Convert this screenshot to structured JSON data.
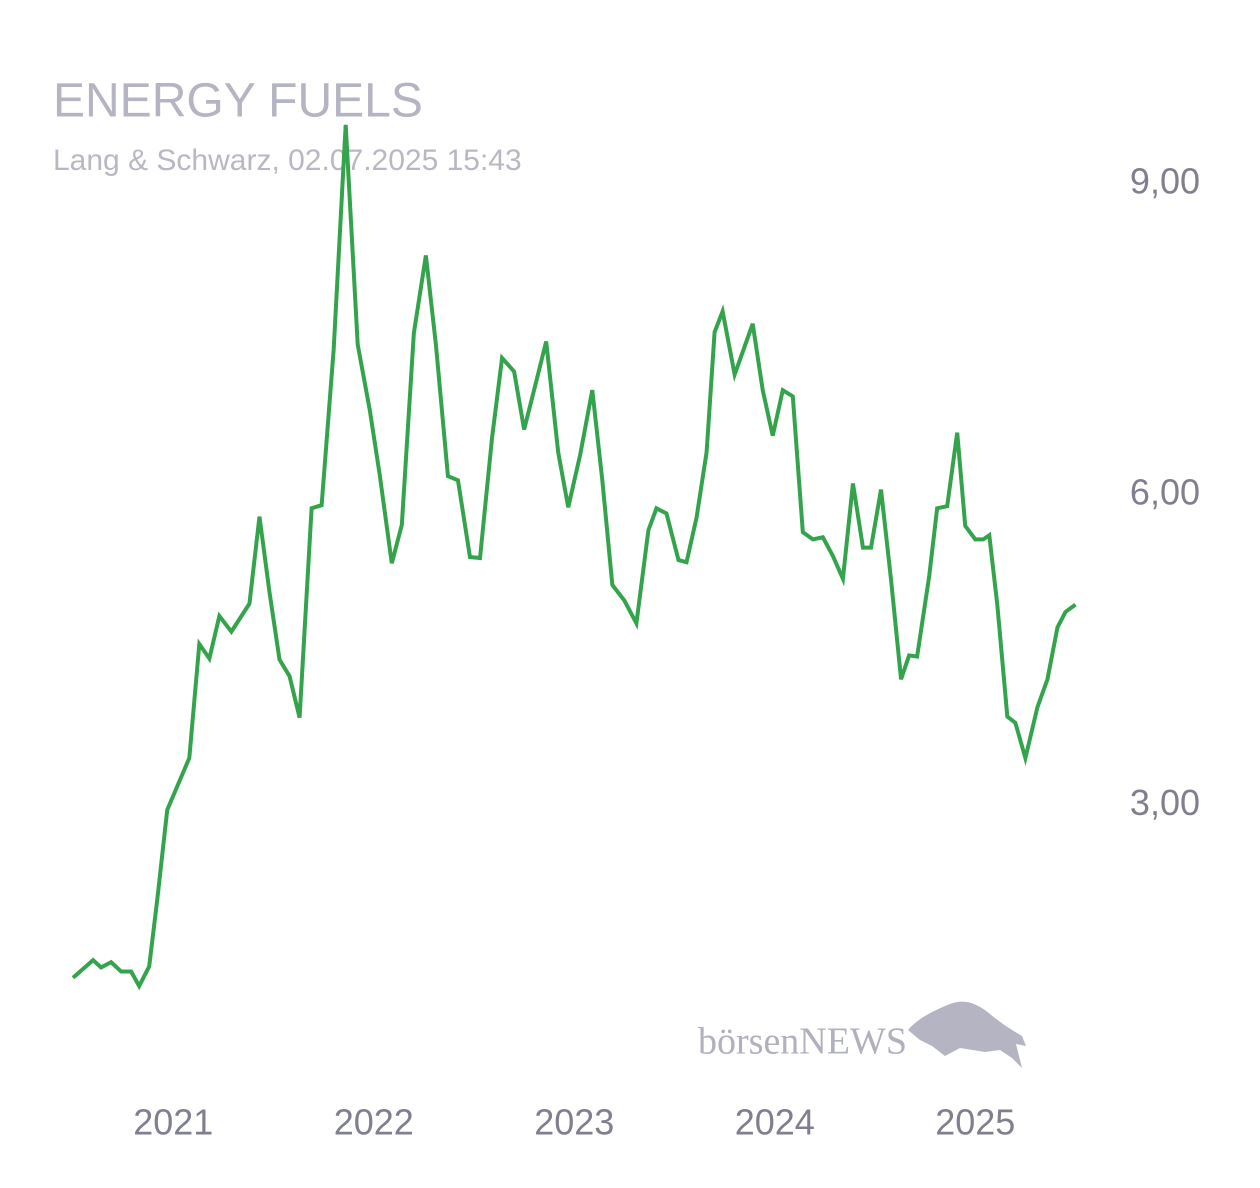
{
  "chart_data": {
    "type": "line",
    "title": "ENERGY FUELS",
    "subtitle": "Lang & Schwarz, 02.07.2025 15:43",
    "watermark": "börsenNEWS",
    "color": "#34a44c",
    "xlim": [
      2020.5,
      2025.5
    ],
    "xticks": [
      2021,
      2022,
      2023,
      2024,
      2025
    ],
    "ylim": [
      1.0,
      9.8
    ],
    "yticks": [
      {
        "value": 3,
        "label": "3,00"
      },
      {
        "value": 6,
        "label": "6,00"
      },
      {
        "value": 9,
        "label": "9,00"
      }
    ],
    "grid": false,
    "x": [
      2020.5,
      2020.6,
      2020.64,
      2020.69,
      2020.74,
      2020.79,
      2020.83,
      2020.88,
      2020.92,
      2020.97,
      2021.08,
      2021.13,
      2021.18,
      2021.23,
      2021.29,
      2021.38,
      2021.43,
      2021.48,
      2021.53,
      2021.58,
      2021.63,
      2021.69,
      2021.74,
      2021.8,
      2021.86,
      2021.92,
      2021.98,
      2022.03,
      2022.09,
      2022.14,
      2022.2,
      2022.26,
      2022.31,
      2022.37,
      2022.42,
      2022.48,
      2022.53,
      2022.59,
      2022.64,
      2022.7,
      2022.75,
      2022.81,
      2022.86,
      2022.92,
      2022.97,
      2023.03,
      2023.09,
      2023.14,
      2023.19,
      2023.25,
      2023.31,
      2023.37,
      2023.41,
      2023.46,
      2023.52,
      2023.56,
      2023.61,
      2023.66,
      2023.7,
      2023.74,
      2023.8,
      2023.89,
      2023.94,
      2023.99,
      2024.04,
      2024.09,
      2024.14,
      2024.19,
      2024.24,
      2024.29,
      2024.34,
      2024.39,
      2024.44,
      2024.48,
      2024.53,
      2024.58,
      2024.63,
      2024.67,
      2024.71,
      2024.77,
      2024.81,
      2024.86,
      2024.91,
      2024.95,
      2025.0,
      2025.04,
      2025.07,
      2025.11,
      2025.16,
      2025.2,
      2025.25,
      2025.31,
      2025.36,
      2025.41,
      2025.45,
      2025.5
    ],
    "values": [
      1.34,
      1.51,
      1.44,
      1.49,
      1.4,
      1.4,
      1.26,
      1.45,
      2.09,
      2.96,
      3.46,
      4.56,
      4.42,
      4.83,
      4.68,
      4.95,
      5.79,
      5.06,
      4.41,
      4.25,
      3.85,
      5.87,
      5.9,
      7.4,
      9.57,
      7.45,
      6.82,
      6.19,
      5.34,
      5.71,
      7.56,
      8.31,
      7.45,
      6.18,
      6.14,
      5.4,
      5.39,
      6.55,
      7.32,
      7.19,
      6.63,
      7.09,
      7.48,
      6.41,
      5.88,
      6.39,
      7.01,
      6.14,
      5.13,
      4.98,
      4.76,
      5.66,
      5.87,
      5.82,
      5.37,
      5.35,
      5.78,
      6.41,
      7.57,
      7.77,
      7.16,
      7.65,
      7.01,
      6.57,
      7.01,
      6.95,
      5.64,
      5.57,
      5.59,
      5.41,
      5.19,
      6.11,
      5.49,
      5.49,
      6.05,
      5.18,
      4.22,
      4.45,
      4.44,
      5.21,
      5.87,
      5.89,
      6.6,
      5.7,
      5.57,
      5.57,
      5.61,
      4.94,
      3.86,
      3.8,
      3.46,
      3.95,
      4.22,
      4.72,
      4.87,
      4.94
    ]
  }
}
